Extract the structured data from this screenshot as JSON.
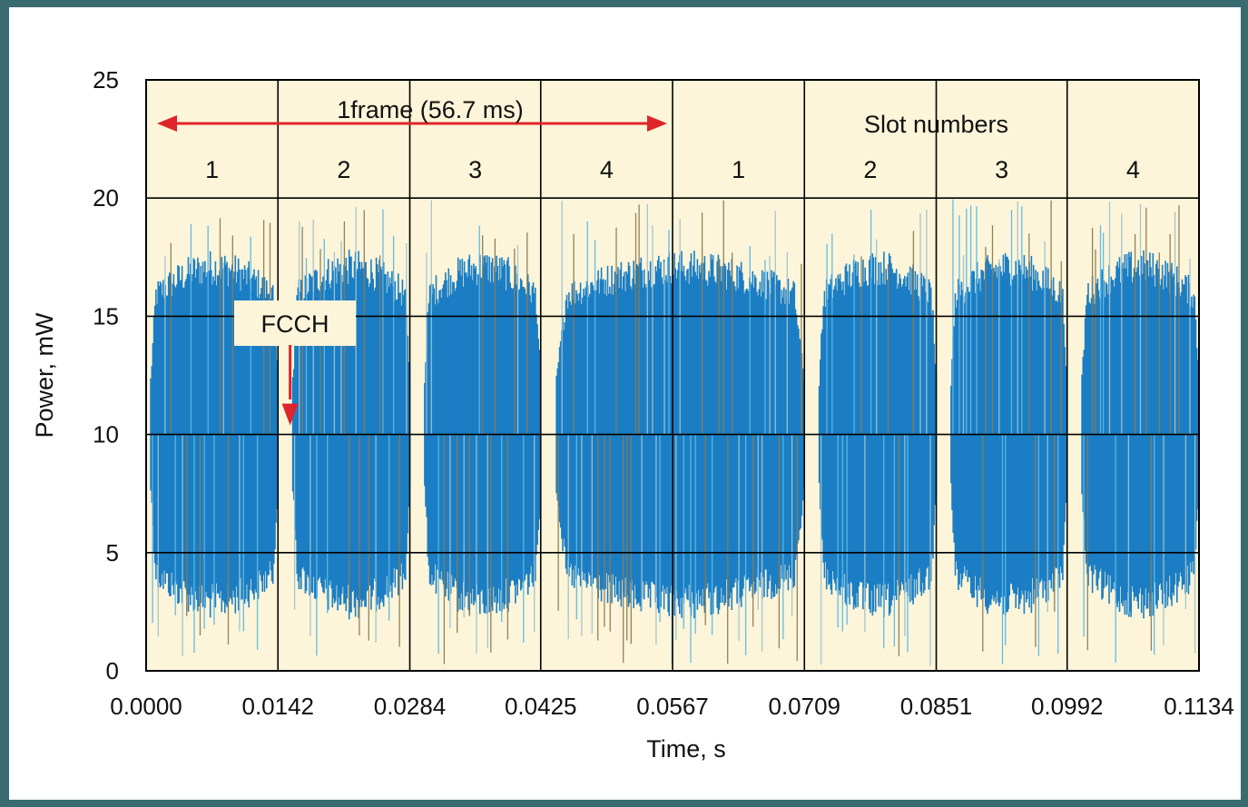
{
  "chart_data": {
    "type": "line",
    "xlabel": "Time, s",
    "ylabel": "Power, mW",
    "xlim": [
      0.0,
      0.1134
    ],
    "ylim": [
      0,
      25
    ],
    "x_ticks": [
      "0.0000",
      "0.0142",
      "0.0284",
      "0.0425",
      "0.0567",
      "0.0709",
      "0.0851",
      "0.0992",
      "0.1134"
    ],
    "y_ticks": [
      "0",
      "5",
      "10",
      "15",
      "20",
      "25"
    ],
    "grid": true,
    "slot_header_label": "Slot numbers",
    "slots": [
      {
        "label": "1",
        "start": 0.0,
        "end": 0.0142
      },
      {
        "label": "2",
        "start": 0.0142,
        "end": 0.0284
      },
      {
        "label": "3",
        "start": 0.0284,
        "end": 0.0425
      },
      {
        "label": "4",
        "start": 0.0425,
        "end": 0.0567
      },
      {
        "label": "1",
        "start": 0.0567,
        "end": 0.0709
      },
      {
        "label": "2",
        "start": 0.0709,
        "end": 0.0851
      },
      {
        "label": "3",
        "start": 0.0851,
        "end": 0.0992
      },
      {
        "label": "4",
        "start": 0.0992,
        "end": 0.1134
      }
    ],
    "frame_annotation": {
      "label": "1frame (56.7 ms)",
      "start": 0.0,
      "end": 0.0567
    },
    "fcch_annotation": {
      "label": "FCCH",
      "x": 0.0158,
      "y": 10
    },
    "signal": {
      "center": 10,
      "typical_peak_low": 2,
      "typical_peak_high": 18,
      "max_peak": 20,
      "bursts": [
        {
          "start": 0.0005,
          "end": 0.0142
        },
        {
          "start": 0.0158,
          "end": 0.0284
        },
        {
          "start": 0.03,
          "end": 0.0425
        },
        {
          "start": 0.0442,
          "end": 0.0709
        },
        {
          "start": 0.0725,
          "end": 0.0851
        },
        {
          "start": 0.0867,
          "end": 0.0992
        },
        {
          "start": 0.1008,
          "end": 0.1134
        }
      ]
    },
    "colors": {
      "signal": "#1b7ec4",
      "signal_spikes": [
        "#5bb7e6",
        "#8c7a52",
        "#9ec2cf"
      ],
      "header_fill": "#fdf5d9",
      "annotation_arrow": "#e0242b",
      "grid": "#000000"
    }
  }
}
